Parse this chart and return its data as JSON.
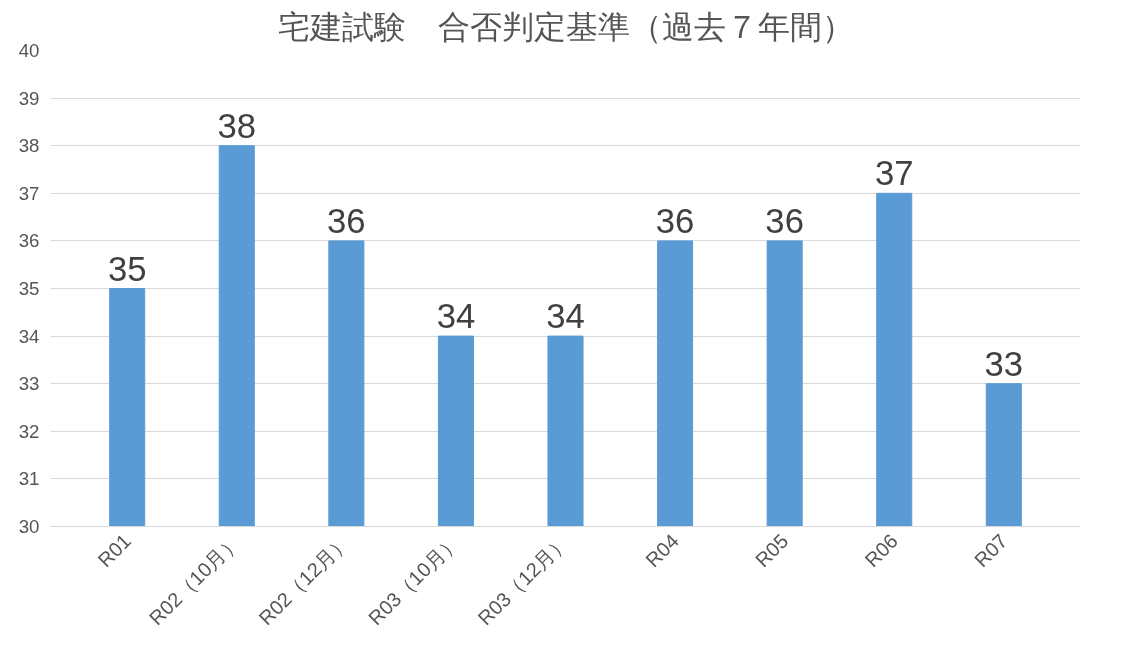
{
  "chart_data": {
    "type": "bar",
    "title": "宅建試験　合否判定基準（過去７年間）",
    "categories": [
      "R01",
      "R02（10月）",
      "R02（12月）",
      "R03（10月）",
      "R03（12月）",
      "R04",
      "R05",
      "R06",
      "R07"
    ],
    "values": [
      35,
      38,
      36,
      34,
      34,
      36,
      36,
      37,
      33
    ],
    "color": "#5b9bd5",
    "ylim": [
      30,
      40
    ],
    "yticks": [
      30,
      31,
      32,
      33,
      34,
      35,
      36,
      37,
      38,
      39,
      40
    ],
    "grid": "y",
    "data_labels": true
  }
}
